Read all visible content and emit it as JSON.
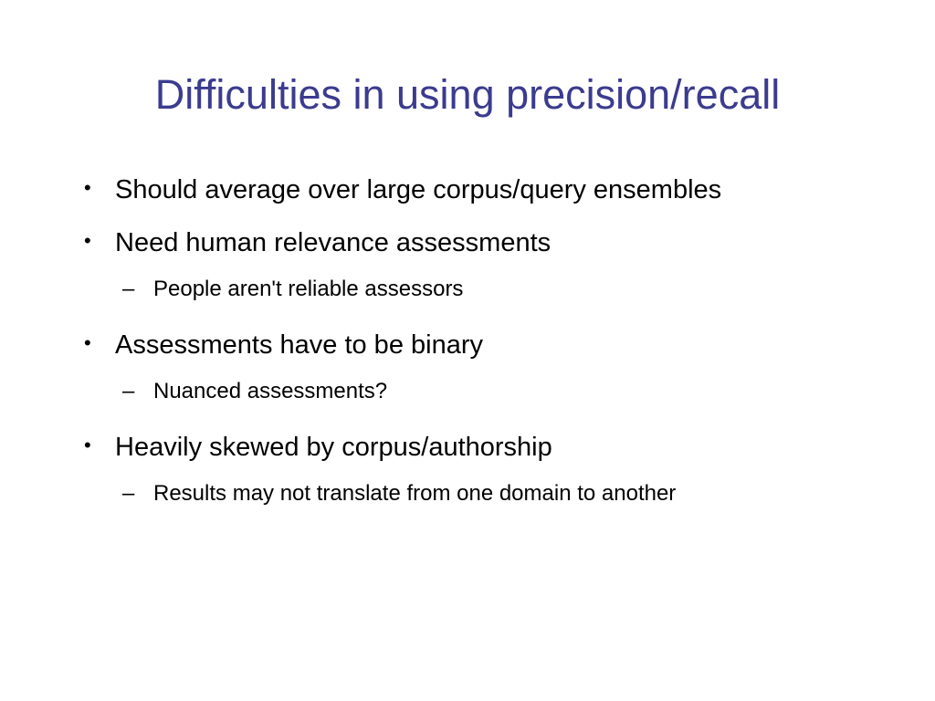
{
  "slide": {
    "title": "Difficulties in using precision/recall",
    "title_color": "#3b3b8f",
    "title_fontsize": 45,
    "body_fontsize_l1": 29,
    "body_fontsize_l2": 24,
    "text_color": "#000000",
    "background_color": "#ffffff",
    "bullets": [
      {
        "level": 1,
        "text": "Should average over large corpus/query ensembles"
      },
      {
        "level": 1,
        "text": "Need human relevance assessments"
      },
      {
        "level": 2,
        "text": "People aren't reliable assessors"
      },
      {
        "level": 1,
        "text": "Assessments have to be binary"
      },
      {
        "level": 2,
        "text": "Nuanced assessments?"
      },
      {
        "level": 1,
        "text": "Heavily skewed by corpus/authorship"
      },
      {
        "level": 2,
        "text": "Results may not translate from one domain to another"
      }
    ]
  }
}
